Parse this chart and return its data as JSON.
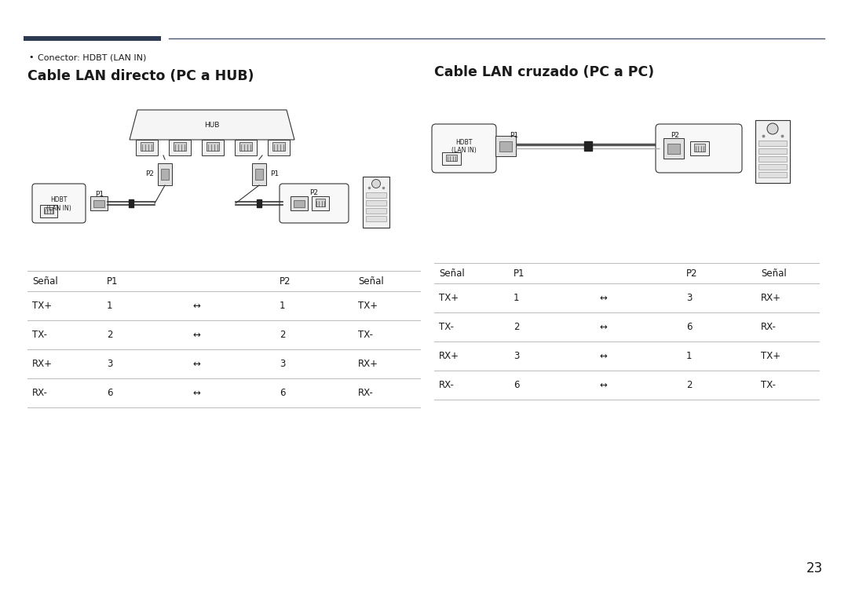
{
  "bg_color": "#ffffff",
  "page_number": "23",
  "header_bar_color": "#2d3a52",
  "header_line_color": "#3d4a6a",
  "bullet_text": "Conector: HDBT (LAN IN)",
  "left_section_title": "Cable LAN directo (PC a HUB)",
  "right_section_title": "Cable LAN cruzado (PC a PC)",
  "table_line_color": "#bbbbbb",
  "text_color": "#1a1a1a",
  "diagram_color": "#333333",
  "table_header_fontsize": 8.5,
  "table_body_fontsize": 8.5,
  "title_fontsize": 12.5,
  "bullet_fontsize": 8,
  "left_table": {
    "headers": [
      "Señal",
      "P1",
      "",
      "P2",
      "Señal"
    ],
    "rows": [
      [
        "TX+",
        "1",
        "↔",
        "1",
        "TX+"
      ],
      [
        "TX-",
        "2",
        "↔",
        "2",
        "TX-"
      ],
      [
        "RX+",
        "3",
        "↔",
        "3",
        "RX+"
      ],
      [
        "RX-",
        "6",
        "↔",
        "6",
        "RX-"
      ]
    ]
  },
  "right_table": {
    "headers": [
      "Señal",
      "P1",
      "",
      "P2",
      "Señal"
    ],
    "rows": [
      [
        "TX+",
        "1",
        "↔",
        "3",
        "RX+"
      ],
      [
        "TX-",
        "2",
        "↔",
        "6",
        "RX-"
      ],
      [
        "RX+",
        "3",
        "↔",
        "1",
        "TX+"
      ],
      [
        "RX-",
        "6",
        "↔",
        "2",
        "TX-"
      ]
    ]
  }
}
